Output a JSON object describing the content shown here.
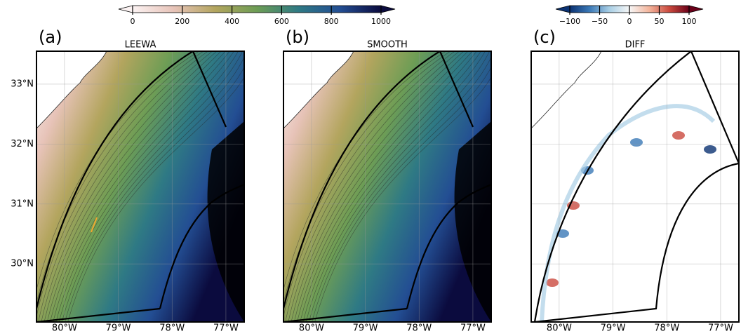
{
  "colorbars": [
    {
      "ticks": [
        0,
        200,
        400,
        600,
        800,
        1000
      ],
      "lim": [
        0,
        1000
      ],
      "colors": [
        "#fcf3f3",
        "#e7c3b8",
        "#b3a55e",
        "#6d9d55",
        "#2f7a84",
        "#234e93",
        "#0b0b3e"
      ]
    },
    {
      "ticks": [
        {
          "value": -100,
          "label": "−100"
        },
        {
          "value": -50,
          "label": "−50"
        },
        0,
        50,
        100
      ],
      "lim": [
        -100,
        100
      ],
      "colors": [
        "#0b3272",
        "#3b79b7",
        "#a9cfe5",
        "#f7f7f7",
        "#f3b49b",
        "#cb4a3e",
        "#6a0019"
      ]
    }
  ],
  "map": {
    "xlim": [
      -80.52,
      -76.66
    ],
    "ylim": [
      29.03,
      33.55
    ],
    "xticks": [
      {
        "value": -80,
        "label": "80°W"
      },
      {
        "value": -79,
        "label": "79°W"
      },
      {
        "value": -78,
        "label": "78°W"
      },
      {
        "value": -77,
        "label": "77°W"
      }
    ],
    "yticks": [
      {
        "value": 30,
        "label": "30°N"
      },
      {
        "value": 31,
        "label": "31°N"
      },
      {
        "value": 32,
        "label": "32°N"
      },
      {
        "value": 33,
        "label": "33°N"
      }
    ]
  },
  "panels": [
    {
      "label": "(a)",
      "title": "LEEWA"
    },
    {
      "label": "(b)",
      "title": "SMOOTH"
    },
    {
      "label": "(c)",
      "title": "DIFF"
    }
  ]
}
